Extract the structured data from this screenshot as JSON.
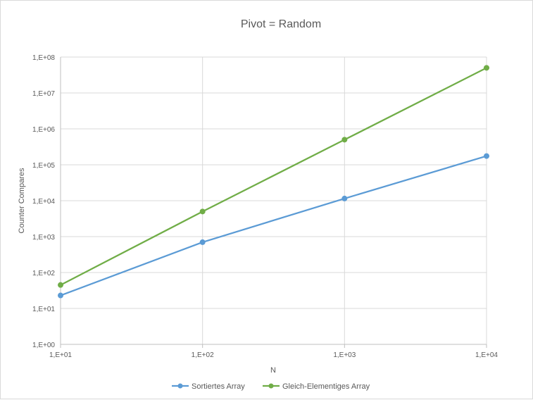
{
  "chart_data": {
    "type": "line",
    "title": "Pivot = Random",
    "xlabel": "N",
    "ylabel": "Counter Compares",
    "x_scale": "log",
    "y_scale": "log",
    "xlim": [
      10,
      10000
    ],
    "ylim": [
      1,
      100000000
    ],
    "x_ticks": [
      10,
      100,
      1000,
      10000
    ],
    "x_tick_labels": [
      "1,E+01",
      "1,E+02",
      "1,E+03",
      "1,E+04"
    ],
    "y_ticks": [
      1,
      10,
      100,
      1000,
      10000,
      100000,
      1000000,
      10000000,
      100000000
    ],
    "y_tick_labels": [
      "1,E+00",
      "1,E+01",
      "1,E+02",
      "1,E+03",
      "1,E+04",
      "1,E+05",
      "1,E+06",
      "1,E+07",
      "1,E+08"
    ],
    "grid": true,
    "legend_position": "bottom",
    "x": [
      10,
      100,
      1000,
      10000
    ],
    "series": [
      {
        "name": "Sortiertes Array",
        "color": "#5b9bd5",
        "values": [
          23,
          700,
          11500,
          175000
        ]
      },
      {
        "name": "Gleich-Elementiges Array",
        "color": "#70ad47",
        "values": [
          45,
          5000,
          500000,
          50000000
        ]
      }
    ]
  }
}
